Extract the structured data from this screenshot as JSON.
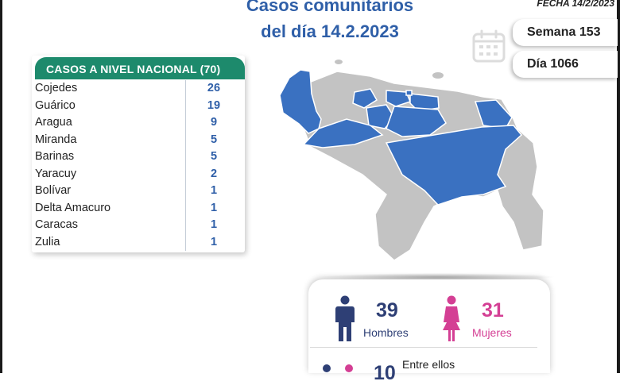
{
  "header": {
    "title_line1": "Casos comunitarios",
    "title_line2": "del día 14.2.2023",
    "date": "FECHA 14/2/2023",
    "week_label": "Semana 153",
    "day_label": "Día 1066",
    "title_color": "#2f5fa8"
  },
  "national_table": {
    "header": "CASOS A NIVEL NACIONAL  (70)",
    "header_color": "#1d8a6c",
    "rows": [
      {
        "state": "Cojedes",
        "cases": "26"
      },
      {
        "state": "Guárico",
        "cases": "19"
      },
      {
        "state": "Aragua",
        "cases": "9"
      },
      {
        "state": "Miranda",
        "cases": "5"
      },
      {
        "state": "Barinas",
        "cases": "5"
      },
      {
        "state": "Yaracuy",
        "cases": "2"
      },
      {
        "state": "Bolívar",
        "cases": "1"
      },
      {
        "state": "Delta Amacuro",
        "cases": "1"
      },
      {
        "state": "Caracas",
        "cases": "1"
      },
      {
        "state": "Zulia",
        "cases": "1"
      }
    ]
  },
  "map": {
    "highlight_color": "#3a71c1",
    "base_color": "#c3c3c3"
  },
  "gender": {
    "men_count": "39",
    "men_label": "Hombres",
    "men_color": "#2e3f75",
    "women_count": "31",
    "women_label": "Mujeres",
    "women_color": "#d43f94",
    "between_label": "Entre ellos",
    "partial_count": "10"
  },
  "icons": {
    "calendar": "calendar-icon",
    "man": "man-icon",
    "woman": "woman-icon"
  }
}
